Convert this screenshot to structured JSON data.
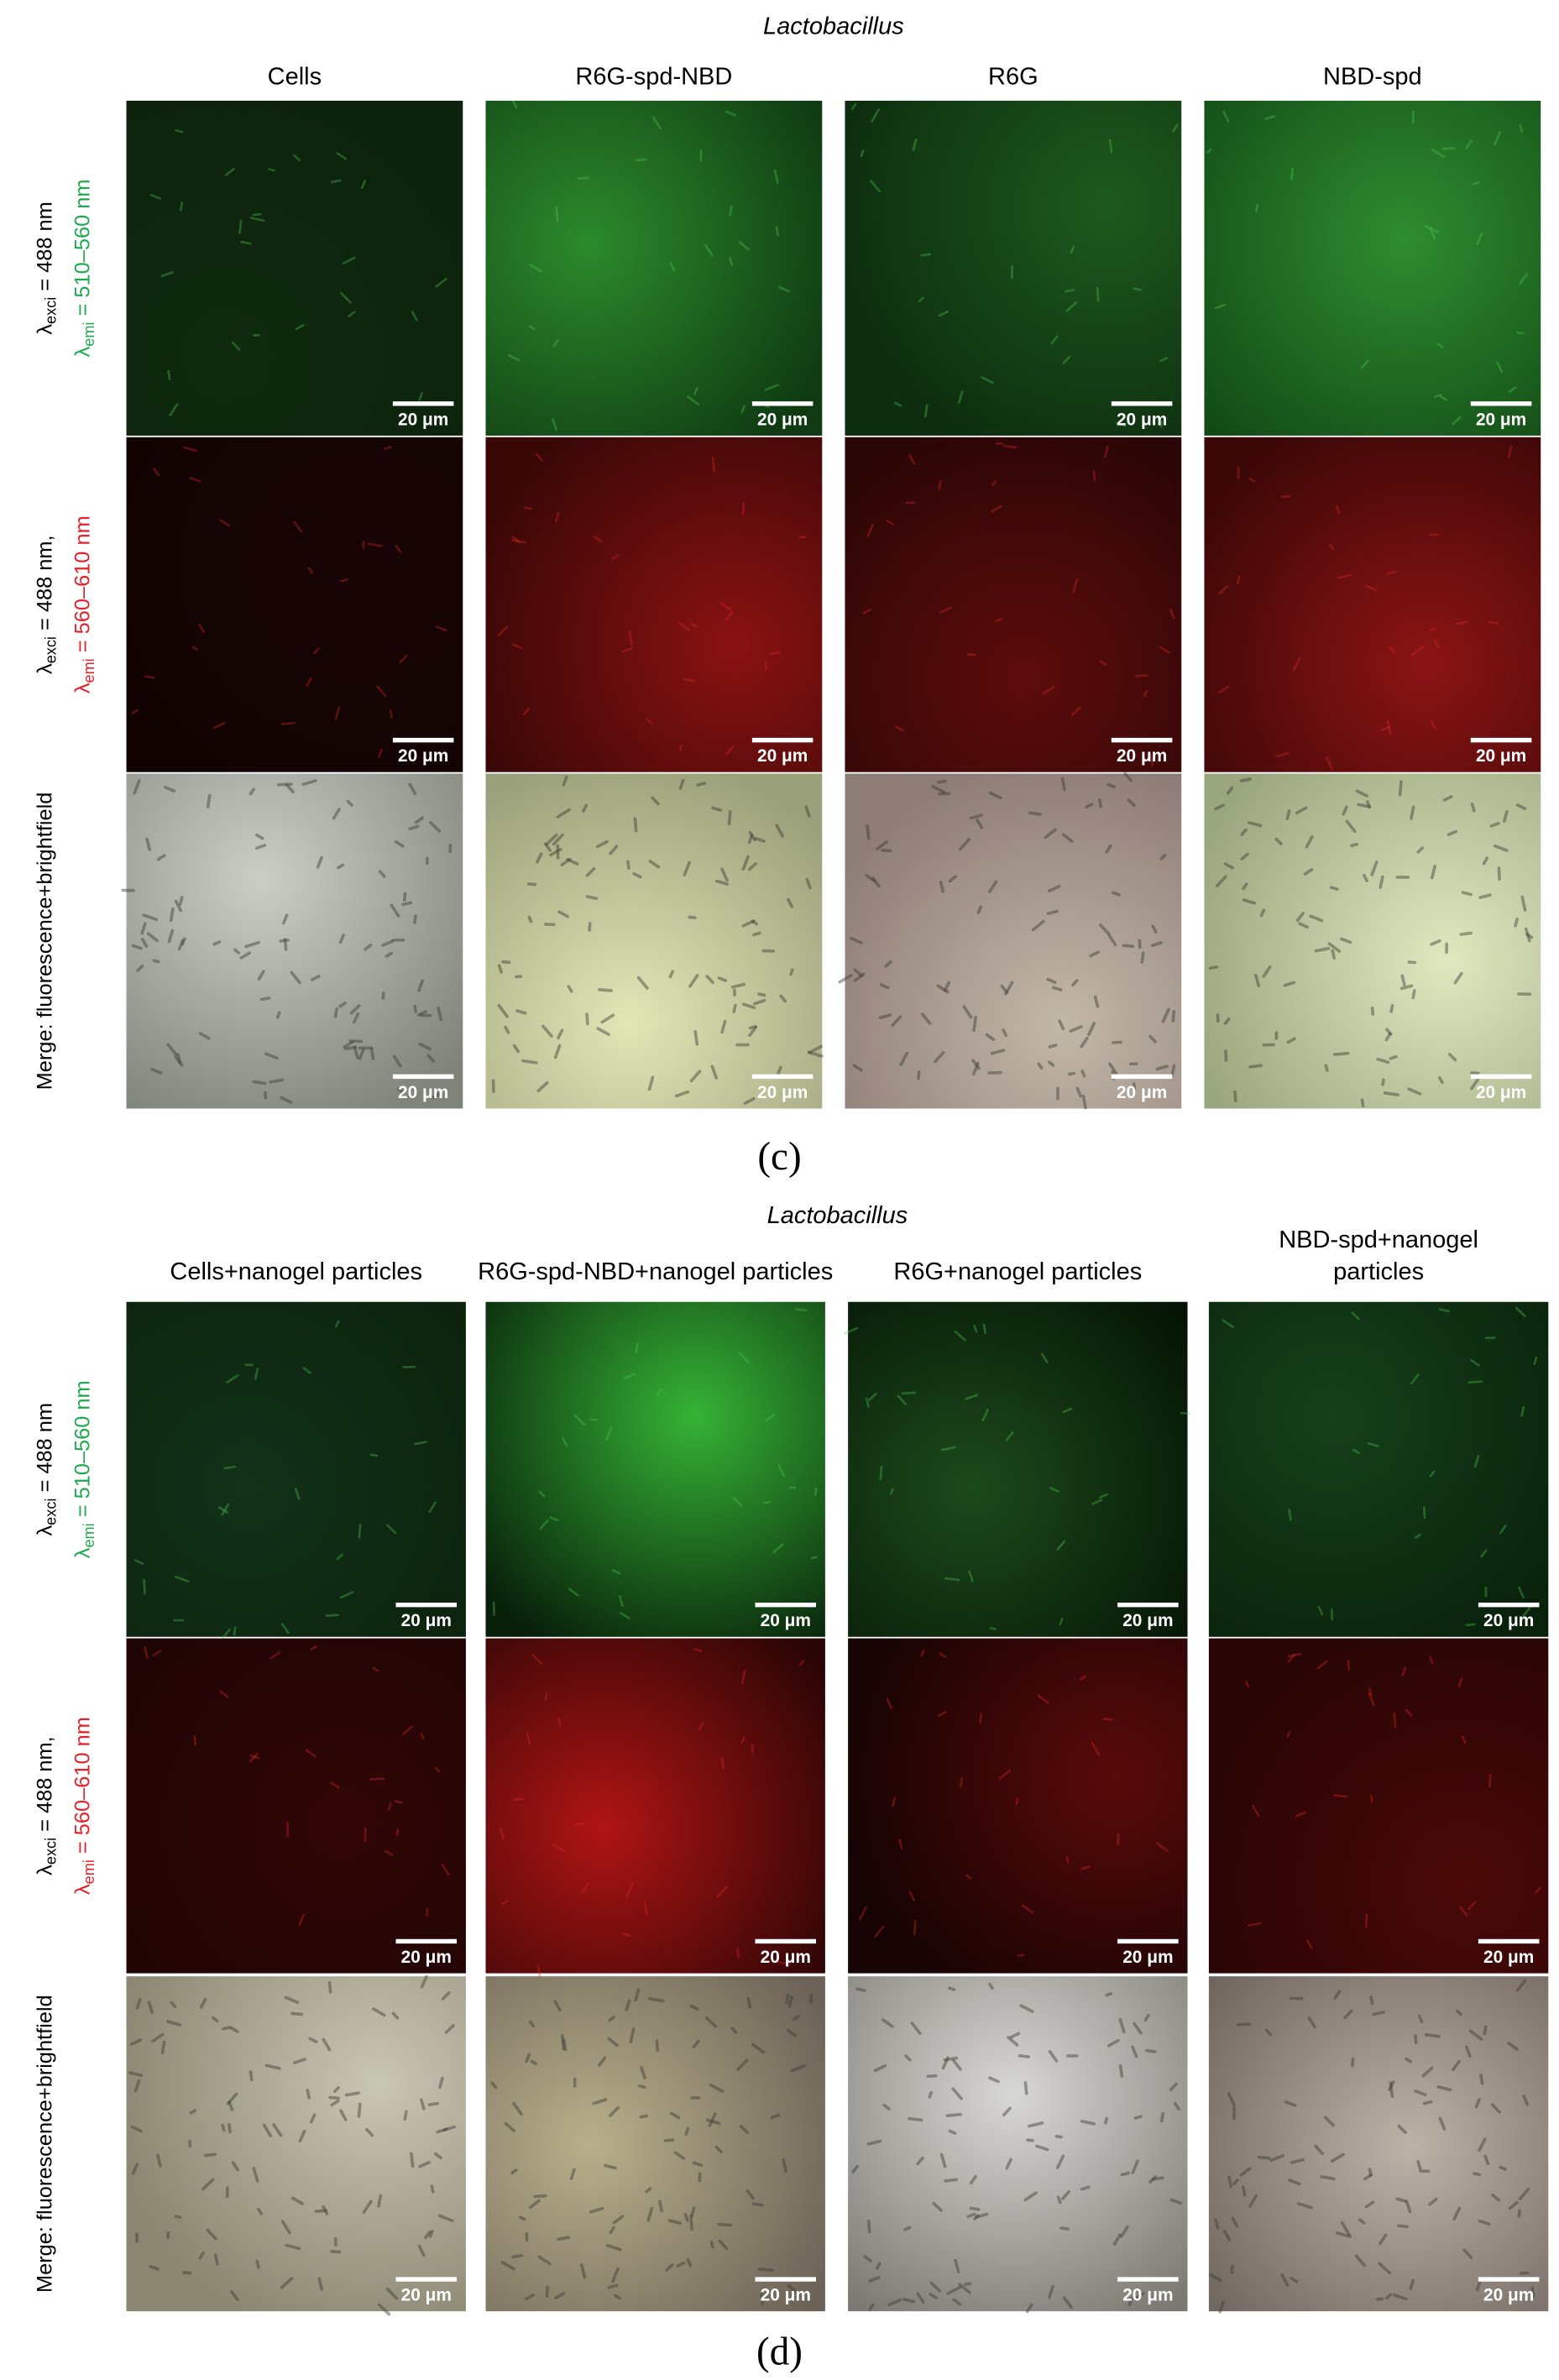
{
  "panels": [
    {
      "label": "(c)",
      "title": "Lactobacillus",
      "scale_bar": "20 μm",
      "columns": [
        [
          "Cells"
        ],
        [
          "R6G-spd-NBD"
        ],
        [
          "R6G"
        ],
        [
          "NBD-spd"
        ]
      ],
      "rows": [
        {
          "lines": [
            {
              "symbol": "λ",
              "sub": "exci",
              "text": " = 488 nm",
              "color": "#000000"
            },
            {
              "symbol": "λ",
              "sub": "emi",
              "text": " = 510–560 nm",
              "color": "#1faa4f"
            }
          ]
        },
        {
          "lines": [
            {
              "symbol": "λ",
              "sub": "exci",
              "text": " = 488 nm,",
              "color": "#000000"
            },
            {
              "symbol": "λ",
              "sub": "emi",
              "text": " = 560–610 nm",
              "color": "#e8202a"
            }
          ]
        },
        {
          "lines": [
            {
              "text": "Merge: fluorescence+brightfield",
              "color": "#000000"
            }
          ]
        }
      ]
    },
    {
      "label": "(d)",
      "title": "Lactobacillus",
      "scale_bar": "20 μm",
      "columns": [
        [
          "Cells+nanogel particles"
        ],
        [
          "R6G-spd-NBD+nanogel particles"
        ],
        [
          "R6G+nanogel particles"
        ],
        [
          "NBD-spd+nanogel",
          "particles"
        ]
      ],
      "rows": [
        {
          "lines": [
            {
              "symbol": "λ",
              "sub": "exci",
              "text": " = 488 nm",
              "color": "#000000"
            },
            {
              "symbol": "λ",
              "sub": "emi",
              "text": " = 510–560 nm",
              "color": "#1faa4f"
            }
          ]
        },
        {
          "lines": [
            {
              "symbol": "λ",
              "sub": "exci",
              "text": " = 488 nm,",
              "color": "#000000"
            },
            {
              "symbol": "λ",
              "sub": "emi",
              "text": " = 560–610 nm",
              "color": "#e8202a"
            }
          ]
        },
        {
          "lines": [
            {
              "text": "Merge: fluorescence+brightfield",
              "color": "#000000"
            }
          ]
        }
      ]
    }
  ]
}
